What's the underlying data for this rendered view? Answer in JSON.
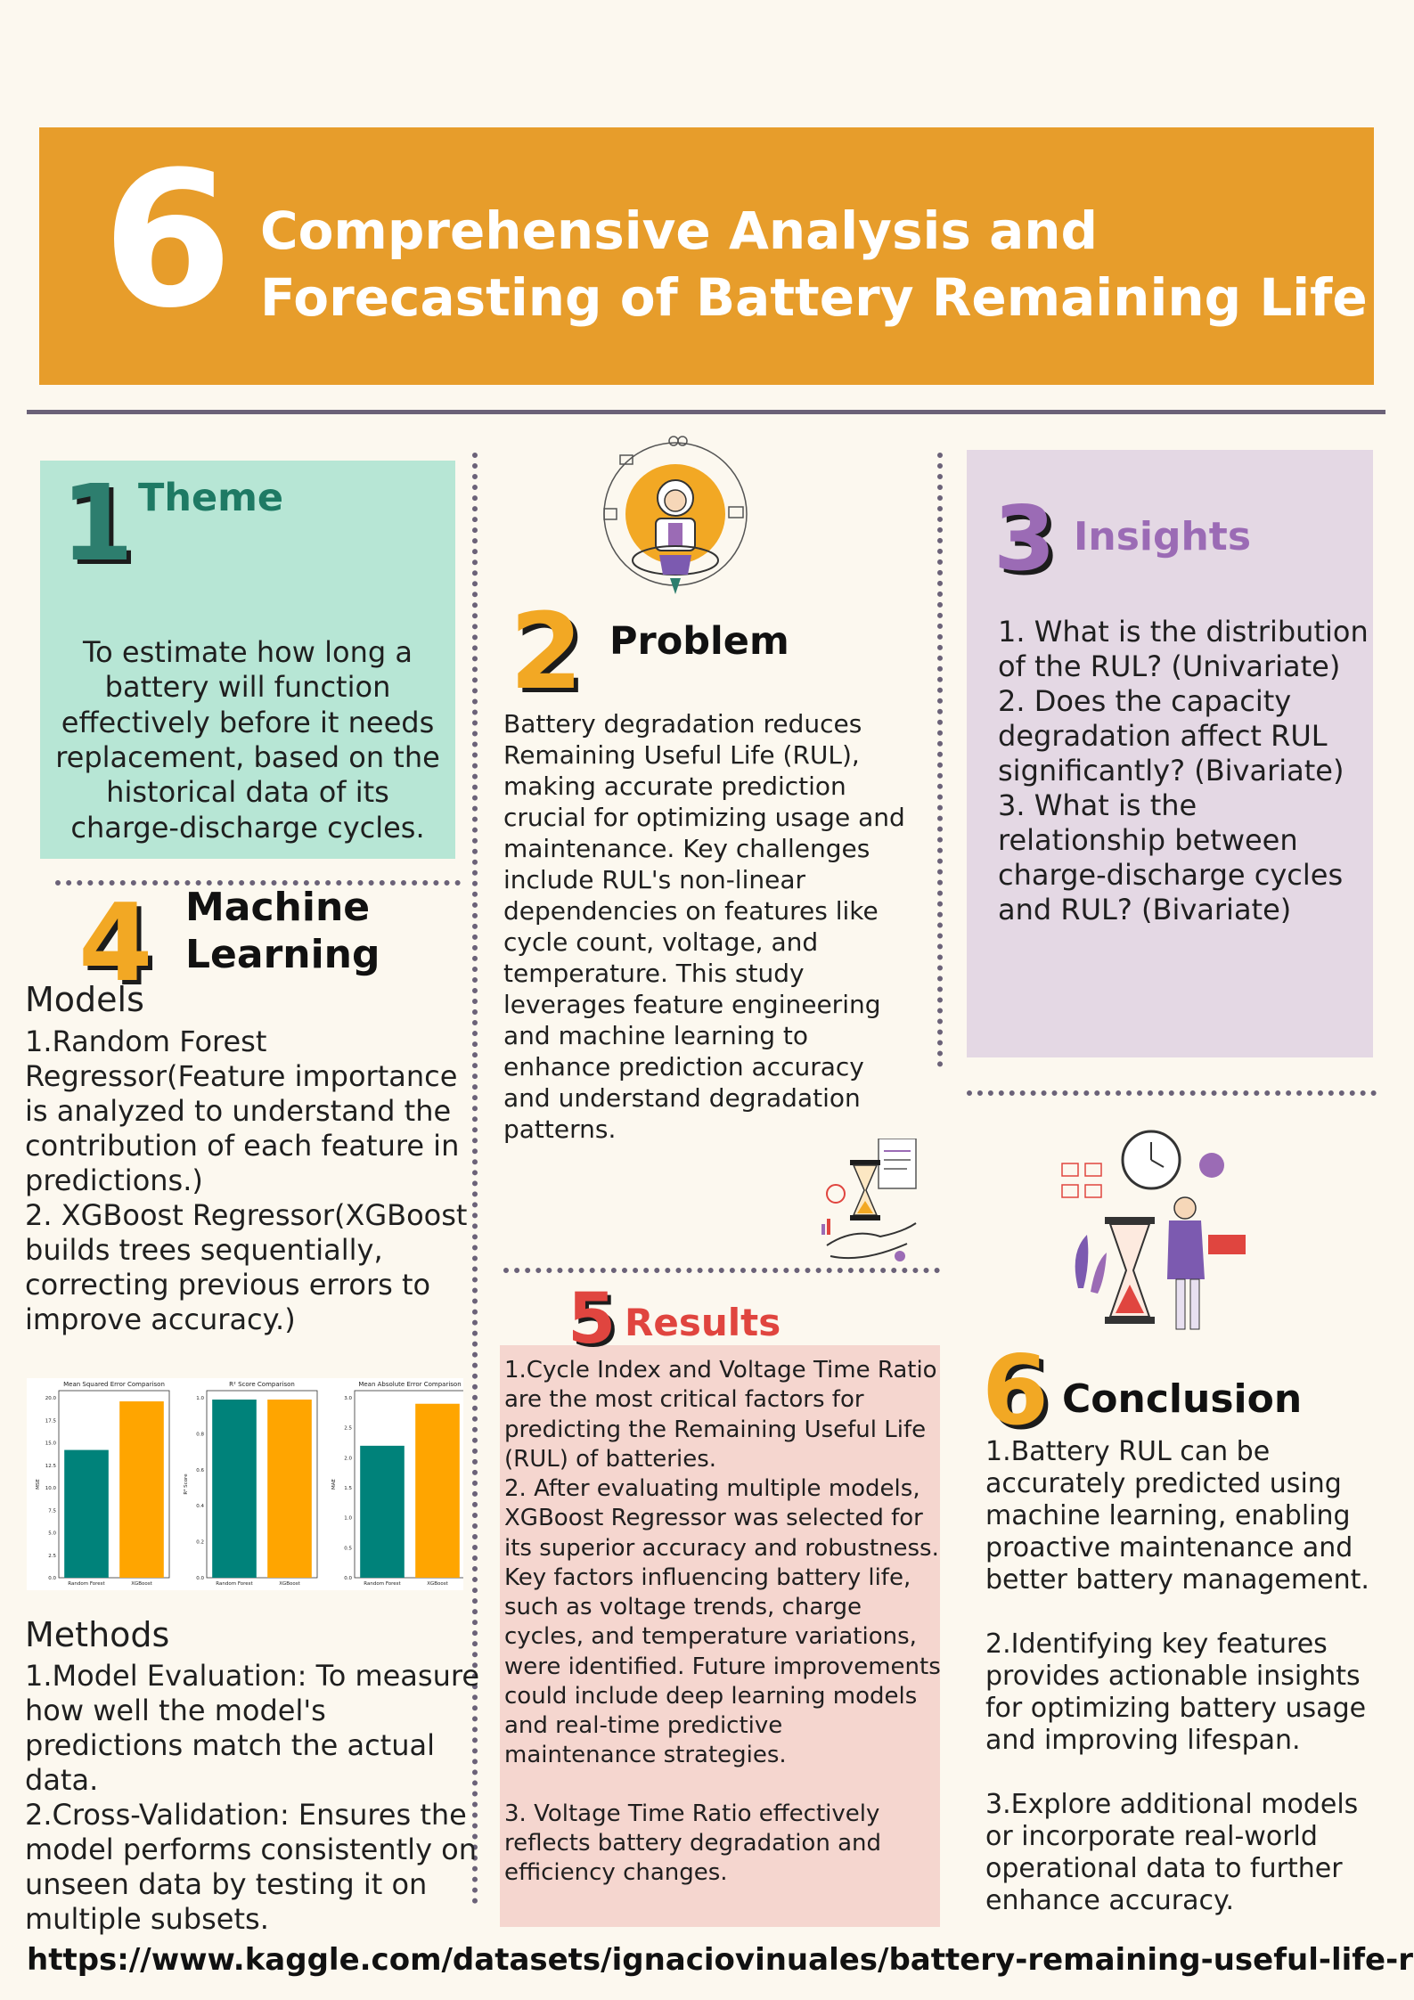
{
  "header": {
    "number": "6",
    "title_line1": "Comprehensive Analysis and",
    "title_line2": "Forecasting of Battery Remaining Life"
  },
  "theme": {
    "number": "1",
    "heading": "Theme",
    "text": "To estimate how long a battery will function effectively before it needs replacement, based on the historical data of its charge-discharge cycles."
  },
  "problem": {
    "number": "2",
    "heading": "Problem",
    "text": "Battery degradation reduces Remaining Useful Life (RUL), making accurate prediction crucial for optimizing usage and maintenance. Key challenges include RUL's non-linear dependencies on features like cycle count, voltage, and temperature. This study leverages feature engineering and machine learning to enhance prediction accuracy and understand degradation patterns."
  },
  "insights": {
    "number": "3",
    "heading": "Insights",
    "items": [
      "1. What is the distribution of the RUL? (Univariate)",
      "2. Does the capacity degradation affect RUL significantly? (Bivariate)",
      "3. What is the relationship between charge-discharge cycles and RUL? (Bivariate)"
    ]
  },
  "machine_learning": {
    "number": "4",
    "heading_line1": "Machine",
    "heading_line2": "Learning",
    "models_heading": "Models",
    "models": [
      "1.Random Forest Regressor(Feature importance is analyzed to understand the contribution of each feature in predictions.)",
      "2.  XGBoost Regressor(XGBoost builds trees sequentially, correcting previous errors to improve accuracy.)"
    ],
    "methods_heading": "Methods",
    "methods": [
      "1.Model Evaluation: To measure how well the model's predictions match the actual data.",
      "2.Cross-Validation: Ensures the model performs consistently on unseen data by testing it on multiple subsets."
    ]
  },
  "results": {
    "number": "5",
    "heading": "Results",
    "items": [
      "1.Cycle Index and Voltage Time Ratio are the most critical factors for predicting the Remaining Useful Life (RUL) of batteries.",
      "2.  After evaluating multiple models, XGBoost Regressor was selected for its superior accuracy and robustness. Key factors influencing battery life, such as voltage trends, charge cycles, and temperature variations, were identified. Future improvements could include deep learning models and real-time predictive maintenance strategies.",
      "3. Voltage Time Ratio effectively reflects battery degradation and efficiency changes."
    ]
  },
  "conclusion": {
    "number": "6",
    "heading": "Conclusion",
    "items": [
      "1.Battery RUL can be accurately predicted using machine learning, enabling proactive maintenance and better battery management.",
      "2.Identifying key features provides actionable insights for optimizing battery usage and improving lifespan.",
      "3.Explore additional models or incorporate real-world operational data to further enhance accuracy."
    ]
  },
  "footer": {
    "url": "https://www.kaggle.com/datasets/ignaciovinuales/battery-remaining-useful-life-rul"
  },
  "colors": {
    "random_forest": "#00827a",
    "xgboost": "#ffa500"
  },
  "chart_data": [
    {
      "type": "bar",
      "title": "Mean Squared Error Comparison",
      "categories": [
        "Random Forest",
        "XGBoost"
      ],
      "values": [
        14.2,
        19.6
      ],
      "ylabel": "MSE",
      "ylim": [
        0,
        20
      ],
      "yticks": [
        "0.0",
        "2.5",
        "5.0",
        "7.5",
        "10.0",
        "12.5",
        "15.0",
        "17.5",
        "20.0"
      ]
    },
    {
      "type": "bar",
      "title": "R² Score Comparison",
      "categories": [
        "Random Forest",
        "XGBoost"
      ],
      "values": [
        0.99,
        0.99
      ],
      "ylabel": "R² Score",
      "ylim": [
        0,
        1
      ],
      "yticks": [
        "0.0",
        "0.2",
        "0.4",
        "0.6",
        "0.8",
        "1.0"
      ]
    },
    {
      "type": "bar",
      "title": "Mean Absolute Error Comparison",
      "categories": [
        "Random Forest",
        "XGBoost"
      ],
      "values": [
        2.2,
        2.9
      ],
      "ylabel": "MAE",
      "ylim": [
        0,
        3
      ],
      "yticks": [
        "0.0",
        "0.5",
        "1.0",
        "1.5",
        "2.0",
        "2.5",
        "3.0"
      ]
    }
  ]
}
